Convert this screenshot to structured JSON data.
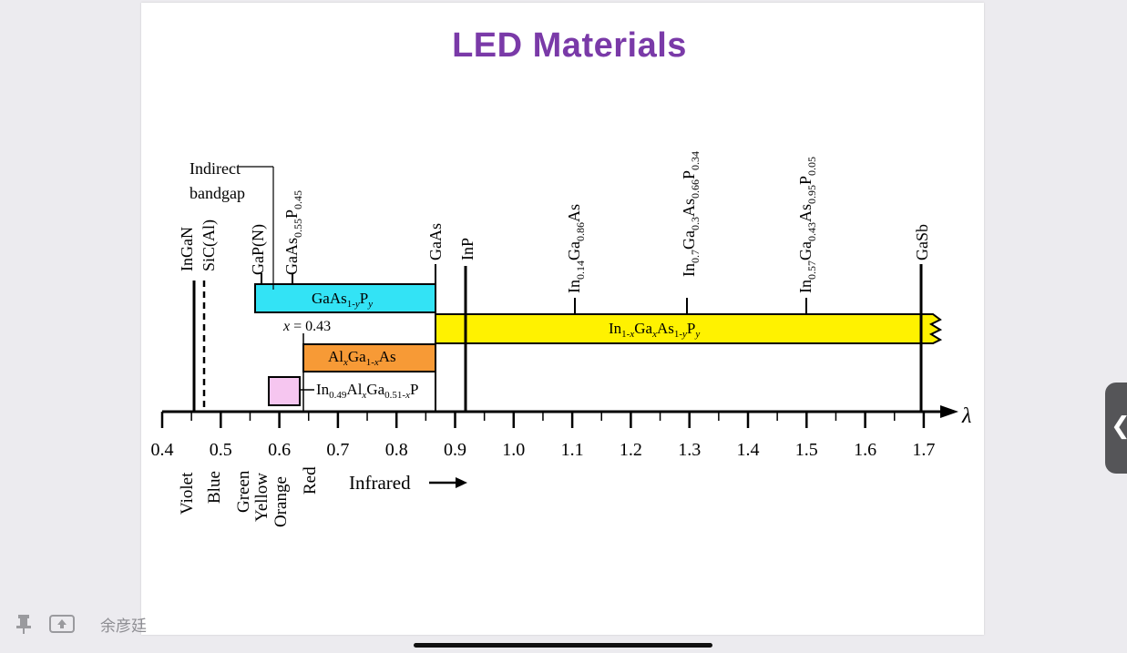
{
  "slide": {
    "title": "LED Materials"
  },
  "diagram": {
    "axis_symbol": "λ",
    "tick_labels": [
      "0.4",
      "0.5",
      "0.6",
      "0.7",
      "0.8",
      "0.9",
      "1.0",
      "1.1",
      "1.2",
      "1.3",
      "1.4",
      "1.5",
      "1.6",
      "1.7"
    ],
    "color_labels": [
      "Violet",
      "Blue",
      "Green",
      "Yellow",
      "Orange",
      "Red"
    ],
    "infrared_label": "Infrared",
    "indirect_line1": "Indirect",
    "indirect_line2": "bandgap",
    "x_label": "x = 0.43",
    "boxes": {
      "gaasp": "GaAs1-yPy",
      "algaas": "AlxGa1-xAs",
      "ingaasp": "In1-xGaxAs1-yPy",
      "inalgap": "In0.49AlxGa0.51-xP"
    },
    "top_labels": [
      "InGaN",
      "SiC(Al)",
      "GaP(N)",
      "GaAs0.55P0.45",
      "GaAs",
      "InP",
      "In0.14Ga0.86As",
      "In0.7Ga0.3As0.66P0.34",
      "In0.57Ga0.43As0.95P0.05",
      "GaSb"
    ],
    "colors": {
      "gaasp": "#33e3f5",
      "algaas": "#f79a36",
      "ingaasp": "#fff200",
      "inalgap": "#f6c6f0",
      "title": "#7a3aa8"
    }
  },
  "footer": {
    "author": "余彦廷"
  }
}
